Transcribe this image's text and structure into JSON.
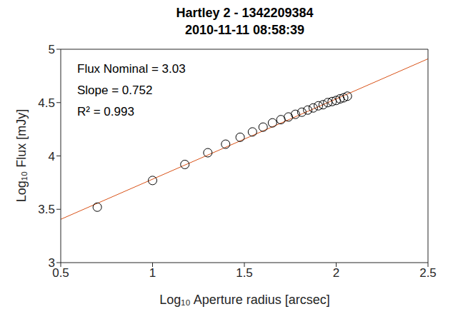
{
  "chart_data": {
    "type": "scatter",
    "title": [
      "Hartley 2 - 1342209384",
      "2010-11-11 08:58:39"
    ],
    "x_label": "Log₁₀ Aperture radius [arcsec]",
    "y_label": "Log₁₀ Flux [mJy]",
    "annotations": [
      "Flux Nominal = 3.03",
      "Slope = 0.752",
      "R² = 0.993"
    ],
    "x": [
      0.699,
      1.0,
      1.176,
      1.301,
      1.398,
      1.477,
      1.544,
      1.602,
      1.653,
      1.699,
      1.74,
      1.778,
      1.813,
      1.845,
      1.875,
      1.903,
      1.929,
      1.954,
      1.978,
      2.0,
      2.021,
      2.041,
      2.061
    ],
    "values": [
      3.52,
      3.77,
      3.92,
      4.03,
      4.11,
      4.175,
      4.225,
      4.27,
      4.31,
      4.34,
      4.365,
      4.39,
      4.41,
      4.43,
      4.45,
      4.47,
      4.48,
      4.5,
      4.51,
      4.52,
      4.535,
      4.545,
      4.56
    ],
    "color": "#000000",
    "marker": "circle",
    "fit": {
      "intercept": 3.03,
      "slope": 0.752,
      "color": "#d95319"
    },
    "xlim": [
      0.5,
      2.5
    ],
    "ylim": [
      3,
      5
    ],
    "xticks": [
      0.5,
      1,
      1.5,
      2,
      2.5
    ],
    "yticks": [
      3,
      3.5,
      4,
      4.5,
      5
    ],
    "grid": false
  }
}
